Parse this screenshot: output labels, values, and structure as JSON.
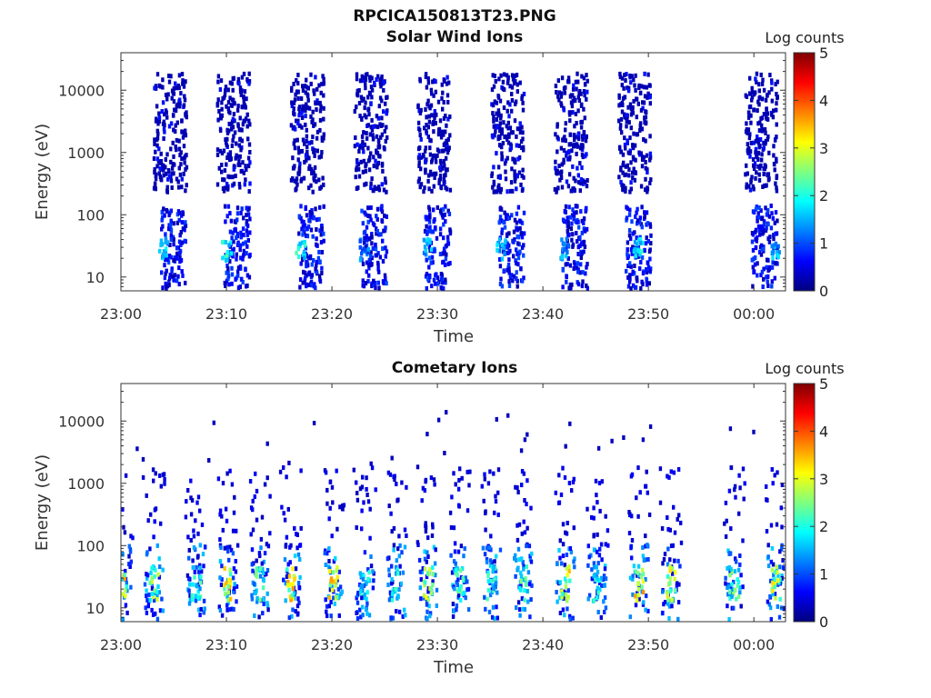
{
  "figure": {
    "title": "RPCICA150813T23.PNG",
    "subtitle": "Solar Wind Ions"
  },
  "chart_data": [
    {
      "type": "heatmap",
      "title": "Solar Wind Ions",
      "xlabel": "Time",
      "ylabel": "Energy (eV)",
      "x_tick_labels": [
        "23:00",
        "23:10",
        "23:20",
        "23:30",
        "23:40",
        "23:50",
        "00:00"
      ],
      "x_range": [
        "23:00",
        "00:03"
      ],
      "y_scale": "log",
      "y_tick_labels": [
        "10",
        "100",
        "1000",
        "10000"
      ],
      "y_range": [
        6,
        40000
      ],
      "colorbar": {
        "label": "Log counts",
        "range": [
          0,
          5
        ],
        "tick_labels": [
          "0",
          "1",
          "2",
          "3",
          "4",
          "5"
        ]
      },
      "colormap": [
        "#00007f",
        "#0000ff",
        "#007fff",
        "#00ffff",
        "#7fff7f",
        "#ffff00",
        "#ff7f00",
        "#ff0000",
        "#7f0000"
      ],
      "sweeps": [
        {
          "t": "23:03",
          "core": "23:04",
          "core_level": 1.9
        },
        {
          "t": "23:09",
          "core": "23:10",
          "core_level": 2.3
        },
        {
          "t": "23:16",
          "core": "23:17",
          "core_level": 2.4
        },
        {
          "t": "23:22",
          "core": "23:23",
          "core_level": 1.5
        },
        {
          "t": "23:28",
          "core": "23:29",
          "core_level": 1.8
        },
        {
          "t": "23:35",
          "core": "23:36",
          "core_level": 1.9
        },
        {
          "t": "23:41",
          "core": "23:42",
          "core_level": 1.7
        },
        {
          "t": "23:47",
          "core": "23:49",
          "core_level": 2.2
        },
        {
          "t": "23:59",
          "core": "00:02",
          "core_level": 1.8
        }
      ]
    },
    {
      "type": "heatmap",
      "title": "Cometary Ions",
      "xlabel": "Time",
      "ylabel": "Energy (eV)",
      "x_tick_labels": [
        "23:00",
        "23:10",
        "23:20",
        "23:30",
        "23:40",
        "23:50",
        "00:00"
      ],
      "x_range": [
        "23:00",
        "00:03"
      ],
      "y_scale": "log",
      "y_tick_labels": [
        "10",
        "100",
        "1000",
        "10000"
      ],
      "y_range": [
        6,
        40000
      ],
      "colorbar": {
        "label": "Log counts",
        "range": [
          0,
          5
        ],
        "tick_labels": [
          "0",
          "1",
          "2",
          "3",
          "4",
          "5"
        ]
      },
      "colormap": [
        "#00007f",
        "#0000ff",
        "#007fff",
        "#00ffff",
        "#7fff7f",
        "#ffff00",
        "#ff7f00",
        "#ff0000",
        "#7f0000"
      ],
      "bursts": [
        {
          "t": "23:00",
          "level": 3.6
        },
        {
          "t": "23:03",
          "level": 3.0
        },
        {
          "t": "23:07",
          "level": 2.4
        },
        {
          "t": "23:10",
          "level": 3.7
        },
        {
          "t": "23:13",
          "level": 2.6
        },
        {
          "t": "23:16",
          "level": 3.7
        },
        {
          "t": "23:20",
          "level": 3.8
        },
        {
          "t": "23:23",
          "level": 2.2
        },
        {
          "t": "23:26",
          "level": 2.3
        },
        {
          "t": "23:29",
          "level": 3.4
        },
        {
          "t": "23:32",
          "level": 2.6
        },
        {
          "t": "23:35",
          "level": 2.4
        },
        {
          "t": "23:38",
          "level": 2.6
        },
        {
          "t": "23:42",
          "level": 3.5
        },
        {
          "t": "23:45",
          "level": 2.3
        },
        {
          "t": "23:49",
          "level": 3.7
        },
        {
          "t": "23:52",
          "level": 3.4
        },
        {
          "t": "23:58",
          "level": 2.6
        },
        {
          "t": "00:02",
          "level": 3.3
        }
      ]
    }
  ]
}
